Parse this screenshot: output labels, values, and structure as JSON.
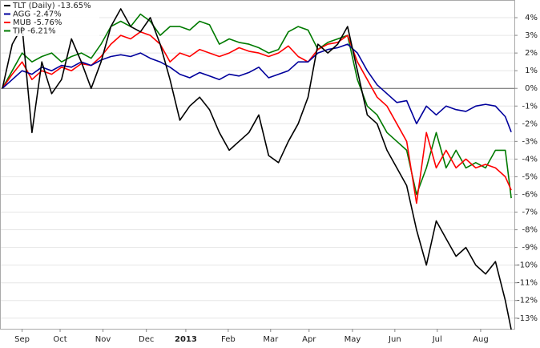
{
  "chart_data": {
    "type": "line",
    "x": [
      0,
      1,
      2,
      3,
      4,
      5,
      6,
      7,
      8,
      9,
      10,
      11,
      12,
      13,
      14,
      15,
      16,
      17,
      18,
      19,
      20,
      21,
      22,
      23,
      24,
      25,
      26,
      27,
      28,
      29,
      30,
      31,
      32,
      33,
      34,
      35,
      36,
      37,
      38,
      39,
      40,
      41,
      42,
      43,
      44,
      45,
      46,
      47,
      48,
      49,
      50,
      51,
      51.6
    ],
    "xlim": [
      0,
      52
    ],
    "xticks": [
      {
        "value": 2.0,
        "label": "Sep"
      },
      {
        "value": 5.85,
        "label": "Oct"
      },
      {
        "value": 10.2,
        "label": "Nov"
      },
      {
        "value": 14.6,
        "label": "Dec"
      },
      {
        "value": 18.6,
        "label": "2013"
      },
      {
        "value": 22.9,
        "label": "Feb"
      },
      {
        "value": 27.2,
        "label": "Mar"
      },
      {
        "value": 31.1,
        "label": "Apr"
      },
      {
        "value": 35.5,
        "label": "May"
      },
      {
        "value": 39.8,
        "label": "Jun"
      },
      {
        "value": 44.1,
        "label": "Jul"
      },
      {
        "value": 48.5,
        "label": "Aug"
      }
    ],
    "ylim": [
      -13.6,
      5
    ],
    "yticks": [
      {
        "value": 4,
        "label": "4%"
      },
      {
        "value": 3,
        "label": "3%"
      },
      {
        "value": 2,
        "label": "2%"
      },
      {
        "value": 1,
        "label": "1%"
      },
      {
        "value": 0,
        "label": "0%"
      },
      {
        "value": -1,
        "label": "-1%"
      },
      {
        "value": -2,
        "label": "-2%"
      },
      {
        "value": -3,
        "label": "-3%"
      },
      {
        "value": -4,
        "label": "-4%"
      },
      {
        "value": -5,
        "label": "-5%"
      },
      {
        "value": -6,
        "label": "-6%"
      },
      {
        "value": -7,
        "label": "-7%"
      },
      {
        "value": -8,
        "label": "-8%"
      },
      {
        "value": -9,
        "label": "-9%"
      },
      {
        "value": -10,
        "label": "-10%"
      },
      {
        "value": -11,
        "label": "-11%"
      },
      {
        "value": -12,
        "label": "-12%"
      },
      {
        "value": -13,
        "label": "-13%"
      }
    ],
    "grid": true,
    "legend": "top-left",
    "series": [
      {
        "name": "TLT (Daily) -13.65%",
        "color": "#000000",
        "values": [
          0,
          2.5,
          3.5,
          -2.5,
          1.5,
          -0.3,
          0.5,
          2.8,
          1.5,
          0.0,
          1.5,
          3.5,
          4.5,
          3.5,
          3.2,
          4.0,
          2.5,
          0.5,
          -1.8,
          -1.0,
          -0.5,
          -1.2,
          -2.5,
          -3.5,
          -3.0,
          -2.5,
          -1.5,
          -3.8,
          -4.2,
          -3.0,
          -2.0,
          -0.5,
          2.5,
          2.0,
          2.5,
          3.5,
          1.0,
          -1.5,
          -2.0,
          -3.5,
          -4.5,
          -5.5,
          -8.0,
          -10.0,
          -7.5,
          -8.5,
          -9.5,
          -9.0,
          -10.0,
          -10.5,
          -9.8,
          -12.0,
          -13.65
        ]
      },
      {
        "name": "AGG -2.47%",
        "color": "#00009c",
        "values": [
          0,
          0.5,
          1.0,
          0.8,
          1.2,
          1.0,
          1.3,
          1.2,
          1.5,
          1.3,
          1.6,
          1.8,
          1.9,
          1.8,
          2.0,
          1.7,
          1.5,
          1.2,
          0.8,
          0.6,
          0.9,
          0.7,
          0.5,
          0.8,
          0.7,
          0.9,
          1.2,
          0.6,
          0.8,
          1.0,
          1.5,
          1.5,
          2.0,
          2.2,
          2.3,
          2.5,
          2.0,
          1.0,
          0.2,
          -0.3,
          -0.8,
          -0.7,
          -2.0,
          -1.0,
          -1.5,
          -1.0,
          -1.2,
          -1.3,
          -1.0,
          -0.9,
          -1.0,
          -1.6,
          -2.47
        ]
      },
      {
        "name": "MUB -5.76%",
        "color": "#ff0000",
        "values": [
          0,
          0.8,
          1.5,
          0.5,
          1.0,
          0.8,
          1.2,
          1.0,
          1.4,
          1.3,
          1.8,
          2.5,
          3.0,
          2.8,
          3.2,
          3.0,
          2.5,
          1.5,
          2.0,
          1.8,
          2.2,
          2.0,
          1.8,
          2.0,
          2.3,
          2.1,
          2.0,
          1.8,
          2.0,
          2.4,
          1.8,
          1.5,
          2.2,
          2.5,
          2.6,
          3.0,
          1.5,
          0.5,
          -0.5,
          -1.0,
          -2.0,
          -3.0,
          -6.5,
          -2.5,
          -4.5,
          -3.5,
          -4.5,
          -4.0,
          -4.5,
          -4.3,
          -4.5,
          -5.0,
          -5.76
        ]
      },
      {
        "name": "TIP -6.21%",
        "color": "#007a00",
        "values": [
          0,
          1.0,
          2.0,
          1.5,
          1.8,
          2.0,
          1.5,
          1.8,
          2.0,
          1.7,
          2.5,
          3.5,
          3.8,
          3.5,
          4.2,
          3.8,
          3.0,
          3.5,
          3.5,
          3.3,
          3.8,
          3.6,
          2.5,
          2.8,
          2.6,
          2.5,
          2.3,
          2.0,
          2.2,
          3.2,
          3.5,
          3.3,
          2.2,
          2.6,
          2.8,
          3.0,
          0.5,
          -1.0,
          -1.5,
          -2.5,
          -3.0,
          -3.5,
          -6.0,
          -4.5,
          -2.5,
          -4.5,
          -3.5,
          -4.5,
          -4.2,
          -4.5,
          -3.5,
          -3.5,
          -6.21
        ]
      }
    ]
  }
}
